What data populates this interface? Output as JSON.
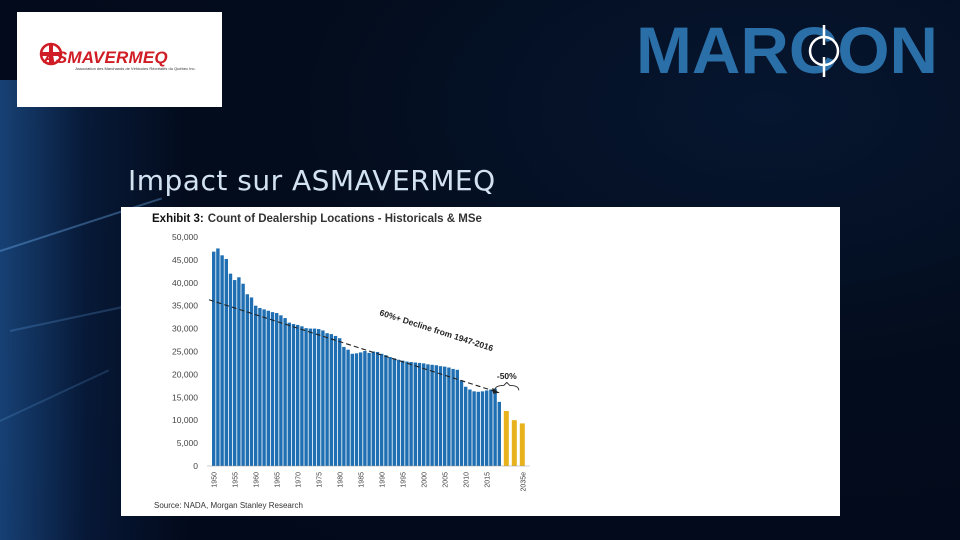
{
  "logos": {
    "left_brand": "ASMAVERMEQ",
    "left_tagline": "Association des Marchands de Véhicules Récréatifs du Québec Inc.",
    "right_brand": "MARCON"
  },
  "slide": {
    "title": "Impact sur ASMAVERMEQ"
  },
  "exhibit": {
    "label": "Exhibit 3:",
    "title": "Count of Dealership Locations - Historicals & MSe",
    "source": "Source: NADA, Morgan Stanley Research"
  },
  "colors": {
    "historical": "#1f6fb2",
    "estimate": "#e8b21c",
    "slide_bg": "#030c1c",
    "title_text": "#d3e2f1"
  },
  "chart_data": {
    "type": "bar",
    "title": "Count of Dealership Locations - Historicals & MSe",
    "ylim": [
      0,
      50000
    ],
    "yticks": [
      "0",
      "5,000",
      "10,000",
      "15,000",
      "20,000",
      "25,000",
      "30,000",
      "35,000",
      "40,000",
      "45,000",
      "50,000"
    ],
    "xtick_labels": [
      "1950",
      "1955",
      "1960",
      "1965",
      "1970",
      "1975",
      "1980",
      "1985",
      "1990",
      "1995",
      "2000",
      "2005",
      "2010",
      "2015",
      "2035e"
    ],
    "series": [
      {
        "values": [
          46800,
          47500,
          46000,
          45200,
          42000,
          40600,
          41200,
          39800,
          37500,
          36800,
          35000,
          34500,
          34200,
          33900,
          33600,
          33400,
          32900,
          32300,
          31300,
          31000,
          30800,
          30500,
          30100,
          30000,
          30000,
          29900,
          29600,
          29000,
          28800,
          28400,
          27900,
          26000,
          25400,
          24500,
          24600,
          24800,
          25100,
          24700,
          25000,
          24900,
          24500,
          24200,
          23800,
          23500,
          23200,
          23000,
          22800,
          22700,
          22600,
          22500,
          22400,
          22200,
          22100,
          22000,
          21800,
          21700,
          21500,
          21200,
          21000,
          18700,
          17300,
          16700,
          16300,
          16200,
          16300,
          16500,
          16700,
          16900,
          14000
        ]
      },
      {
        "values": [
          12000,
          10000,
          9300
        ]
      }
    ],
    "annotations": {
      "trend": "60%+ Decline from 1947-2016",
      "drop": "-50%"
    },
    "grid": false,
    "legend": "none"
  }
}
